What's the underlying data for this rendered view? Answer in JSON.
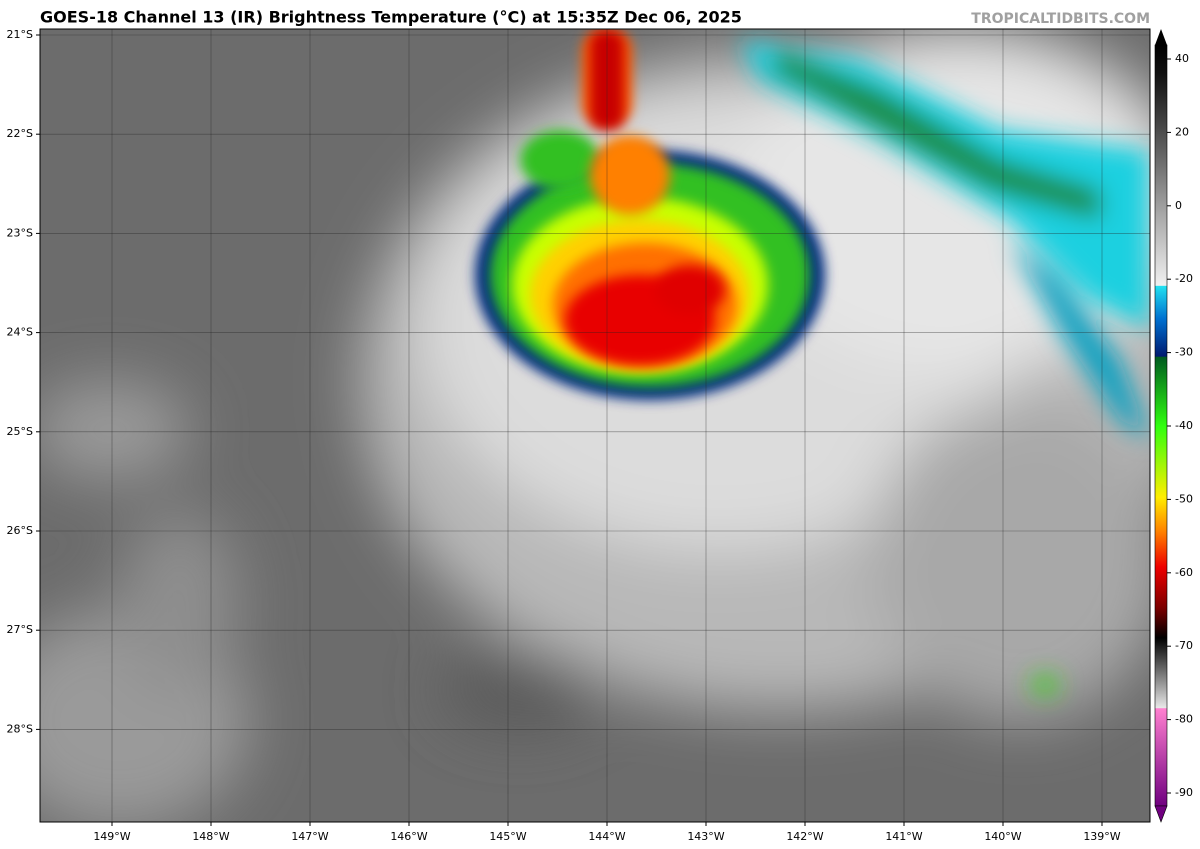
{
  "header": {
    "title": "GOES-18 Channel 13 (IR) Brightness Temperature (°C) at 15:35Z Dec 06, 2025",
    "watermark": "TROPICALTIDBITS.COM"
  },
  "map": {
    "lat_labels": [
      "21°S",
      "22°S",
      "23°S",
      "24°S",
      "25°S",
      "26°S",
      "27°S",
      "28°S"
    ],
    "lon_labels": [
      "149°W",
      "148°W",
      "147°W",
      "146°W",
      "145°W",
      "144°W",
      "143°W",
      "142°W",
      "141°W",
      "140°W",
      "139°W"
    ]
  },
  "colorbar": {
    "ticks": [
      40,
      20,
      0,
      -20,
      -30,
      -40,
      -50,
      -60,
      -70,
      -80,
      -90
    ]
  }
}
